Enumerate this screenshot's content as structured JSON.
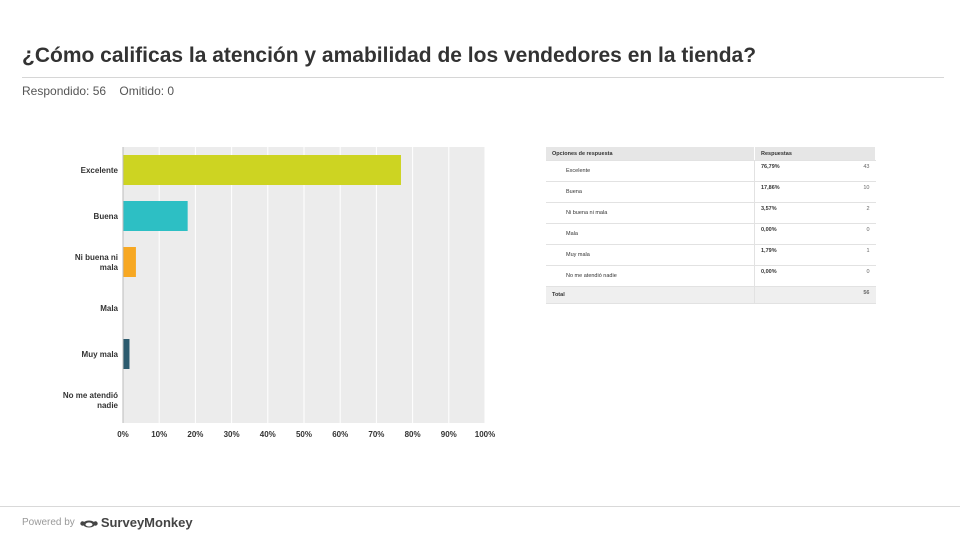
{
  "question": "¿Cómo calificas la atención y amabilidad de los vendedores en la tienda?",
  "stats": {
    "answered": "Respondido: 56",
    "skipped": "Omitido: 0"
  },
  "chart_data": {
    "type": "bar",
    "orientation": "horizontal",
    "categories": [
      "Excelente",
      "Buena",
      "Ni buena ni mala",
      "Mala",
      "Muy mala",
      "No me atendió nadie"
    ],
    "category_lines": [
      [
        "Excelente"
      ],
      [
        "Buena"
      ],
      [
        "Ni buena ni",
        "mala"
      ],
      [
        "Mala"
      ],
      [
        "Muy mala"
      ],
      [
        "No me atendió",
        "nadie"
      ]
    ],
    "values": [
      76.79,
      17.86,
      3.57,
      0,
      1.79,
      0
    ],
    "colors": [
      "#cdd422",
      "#2dbfc4",
      "#f7a823",
      "#8f8f8f",
      "#2c5b6e",
      "#999999"
    ],
    "xlim": [
      0,
      100
    ],
    "xticks": [
      "0%",
      "10%",
      "20%",
      "30%",
      "40%",
      "50%",
      "60%",
      "70%",
      "80%",
      "90%",
      "100%"
    ],
    "grid": true
  },
  "table": {
    "headers": [
      "Opciones de respuesta",
      "Respuestas"
    ],
    "rows": [
      {
        "option": "Excelente",
        "percent": "76,79%",
        "count": "43"
      },
      {
        "option": "Buena",
        "percent": "17,86%",
        "count": "10"
      },
      {
        "option": "Ni buena ni mala",
        "percent": "3,57%",
        "count": "2"
      },
      {
        "option": "Mala",
        "percent": "0,00%",
        "count": "0"
      },
      {
        "option": "Muy mala",
        "percent": "1,79%",
        "count": "1"
      },
      {
        "option": "No me atendió nadie",
        "percent": "0,00%",
        "count": "0"
      }
    ],
    "total_label": "Total",
    "total": "56"
  },
  "footer": {
    "powered_by": "Powered by",
    "brand": "SurveyMonkey"
  }
}
